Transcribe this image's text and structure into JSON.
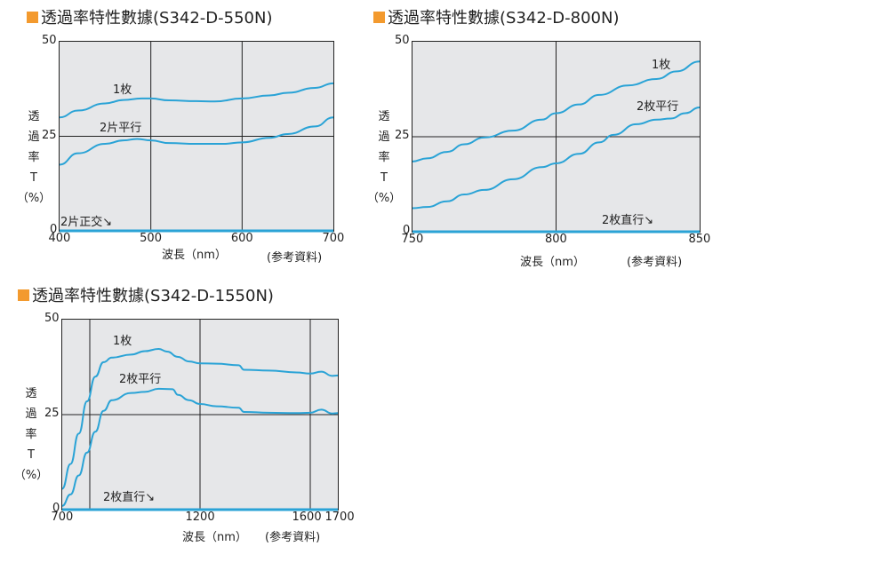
{
  "chart_data": [
    {
      "type": "line",
      "title": "透過率特性數據(S342-D-550N)",
      "xlabel": "波長（nm）",
      "ylabel": [
        "透",
        "過",
        "率",
        "T",
        "（%）"
      ],
      "note": "(参考資料)",
      "xlim": [
        400,
        700
      ],
      "ylim": [
        0,
        50
      ],
      "xticks": [
        400,
        500,
        600,
        700
      ],
      "xtick_labels": [
        "400",
        "500",
        "600",
        "700"
      ],
      "yticks": [
        0,
        25,
        50
      ],
      "ytick_labels": [
        "0",
        "25",
        "50"
      ],
      "grid_x": [
        500,
        600
      ],
      "grid_y": [
        25
      ],
      "series": [
        {
          "name": "1枚",
          "x": [
            400,
            420,
            450,
            470,
            490,
            500,
            520,
            550,
            570,
            600,
            630,
            650,
            680,
            700
          ],
          "y": [
            30,
            31.8,
            33.7,
            34.6,
            35,
            35,
            34.5,
            34.3,
            34.2,
            35,
            35.8,
            36.5,
            37.8,
            39
          ]
        },
        {
          "name": "2片平行",
          "x": [
            400,
            420,
            450,
            470,
            485,
            500,
            520,
            550,
            580,
            600,
            630,
            650,
            680,
            700
          ],
          "y": [
            17.5,
            20.5,
            23,
            23.9,
            24.3,
            23.9,
            23.2,
            23,
            23,
            23.4,
            24.6,
            25.6,
            27.6,
            30
          ]
        },
        {
          "name": "2片正交",
          "x": [
            400,
            700
          ],
          "y": [
            0,
            0
          ]
        }
      ],
      "annotations": [
        "1枚",
        "2片平行",
        "2片正交↘"
      ]
    },
    {
      "type": "line",
      "title": "透過率特性數據(S342-D-800N)",
      "xlabel": "波長（nm）",
      "ylabel": [
        "透",
        "過",
        "率",
        "T",
        "（%）"
      ],
      "note": "(参考資料)",
      "xlim": [
        750,
        850
      ],
      "ylim": [
        0,
        50
      ],
      "xticks": [
        750,
        800,
        850
      ],
      "xtick_labels": [
        "750",
        "800",
        "850"
      ],
      "yticks": [
        0,
        25,
        50
      ],
      "ytick_labels": [
        "0",
        "25",
        "50"
      ],
      "grid_x": [
        800
      ],
      "grid_y": [
        25
      ],
      "series": [
        {
          "name": "1枚",
          "x": [
            750,
            755,
            762,
            768,
            775,
            785,
            795,
            800,
            808,
            815,
            825,
            835,
            842,
            850
          ],
          "y": [
            18.5,
            19.3,
            21,
            23,
            24.8,
            26.6,
            29.5,
            31.2,
            33.5,
            36,
            38.5,
            40.2,
            42.2,
            44.8
          ]
        },
        {
          "name": "2枚平行",
          "x": [
            750,
            755,
            762,
            768,
            775,
            785,
            795,
            800,
            808,
            815,
            820,
            828,
            835,
            840,
            845,
            850
          ],
          "y": [
            6.2,
            6.5,
            8,
            9.8,
            11,
            13.8,
            17,
            18,
            20.5,
            23.5,
            25.5,
            28.3,
            29.5,
            29.8,
            31.2,
            32.7
          ]
        },
        {
          "name": "2枚直行",
          "x": [
            750,
            850
          ],
          "y": [
            0,
            0
          ]
        }
      ],
      "annotations": [
        "1枚",
        "2枚平行",
        "2枚直行↘"
      ]
    },
    {
      "type": "line",
      "title": "透過率特性數據(S342-D-1550N)",
      "xlabel": "波長（nm）",
      "ylabel": [
        "透",
        "過",
        "率",
        "T",
        "（%）"
      ],
      "note": "(参考資料)",
      "xlim": [
        700,
        1700
      ],
      "ylim": [
        0,
        50
      ],
      "xticks": [
        700,
        1200,
        1600,
        1700
      ],
      "xtick_labels": [
        "700",
        "1200",
        "1600",
        "1700"
      ],
      "yticks": [
        0,
        25,
        50
      ],
      "ytick_labels": [
        "0",
        "25",
        "50"
      ],
      "grid_x": [
        800,
        1200,
        1600
      ],
      "grid_y": [
        25
      ],
      "series": [
        {
          "name": "1枚",
          "x": [
            700,
            730,
            760,
            790,
            820,
            850,
            880,
            950,
            1000,
            1050,
            1080,
            1120,
            1160,
            1200,
            1260,
            1340,
            1360,
            1450,
            1550,
            1600,
            1640,
            1680,
            1700
          ],
          "y": [
            5.5,
            12,
            20,
            28.5,
            35,
            38.8,
            40,
            40.8,
            41.7,
            42.3,
            41.6,
            40.2,
            39,
            38.5,
            38.4,
            38,
            36.8,
            36.6,
            36.1,
            35.8,
            36.3,
            35.2,
            35.3
          ]
        },
        {
          "name": "2枚平行",
          "x": [
            700,
            730,
            760,
            790,
            820,
            850,
            880,
            950,
            1000,
            1050,
            1100,
            1120,
            1160,
            1200,
            1260,
            1340,
            1360,
            1450,
            1550,
            1600,
            1640,
            1680,
            1700
          ],
          "y": [
            1,
            4,
            9,
            15,
            20.5,
            26,
            28.8,
            30.7,
            31,
            31.8,
            31.7,
            30.2,
            28.8,
            27.8,
            27.2,
            26.8,
            25.7,
            25.5,
            25.4,
            25.5,
            26.3,
            25.3,
            25.4
          ]
        },
        {
          "name": "2枚直行",
          "x": [
            700,
            1700
          ],
          "y": [
            0,
            0
          ]
        }
      ],
      "annotations": [
        "1枚",
        "2枚平行",
        "2枚直行↘"
      ]
    }
  ],
  "colors": {
    "line": "#2aa3d6",
    "accent": "#f39a2e",
    "plot_bg": "#e6e7e9"
  }
}
